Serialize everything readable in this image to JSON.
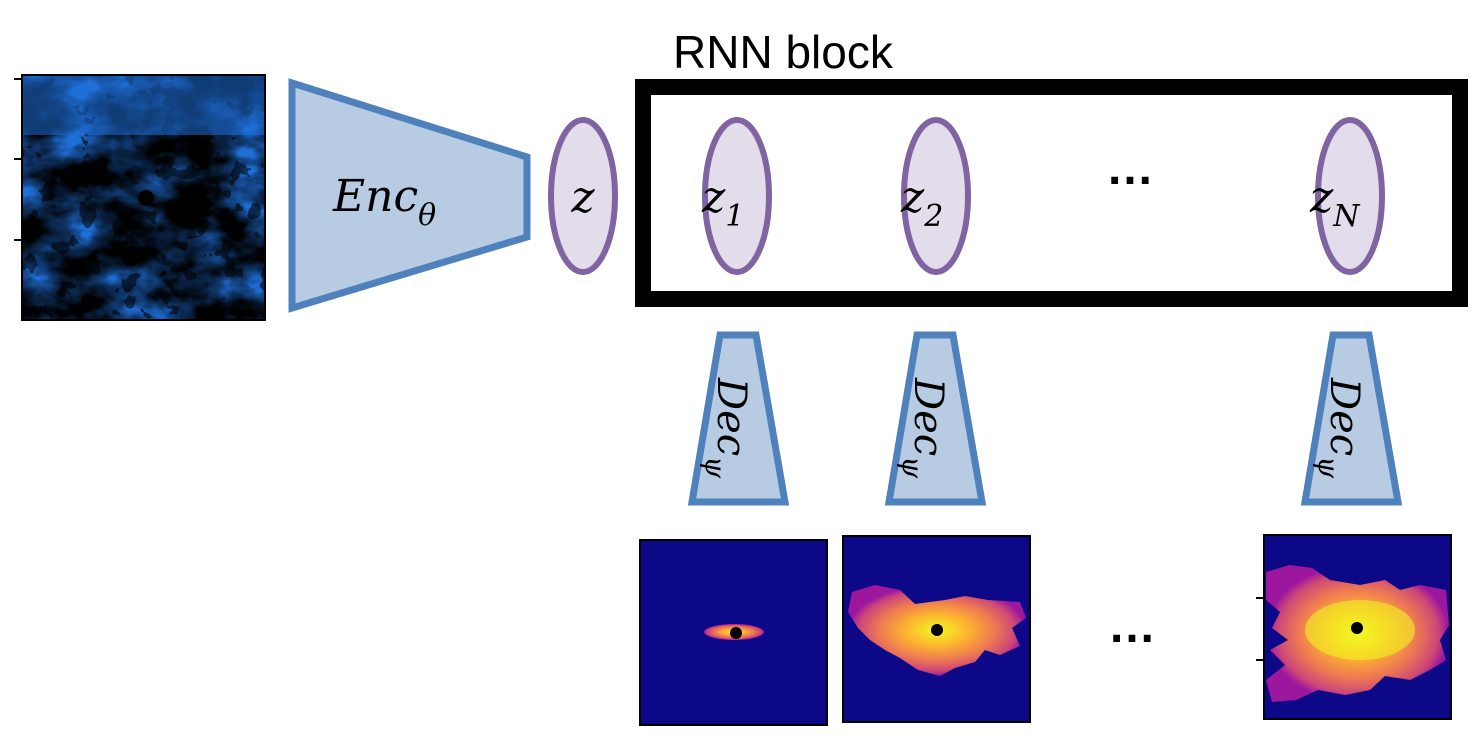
{
  "rnn_block": {
    "title": "RNN block"
  },
  "encoder": {
    "label_main": "Enc",
    "label_sub": "θ"
  },
  "latent": {
    "main": "z",
    "sub": ""
  },
  "rnn_states": [
    {
      "main": "z",
      "sub": "1"
    },
    {
      "main": "z",
      "sub": "2"
    },
    {
      "main": "z",
      "sub": "N"
    }
  ],
  "decoder": {
    "label_main": "Dec",
    "label_sub": "ψ"
  },
  "ellipsis": "…",
  "colors": {
    "encoder_fill": "#b7cce3",
    "encoder_stroke": "#4f81bd",
    "latent_fill": "#e3dcea",
    "latent_stroke": "#8064a2",
    "output_background": "#0d0887",
    "rnn_border": "#000000"
  }
}
